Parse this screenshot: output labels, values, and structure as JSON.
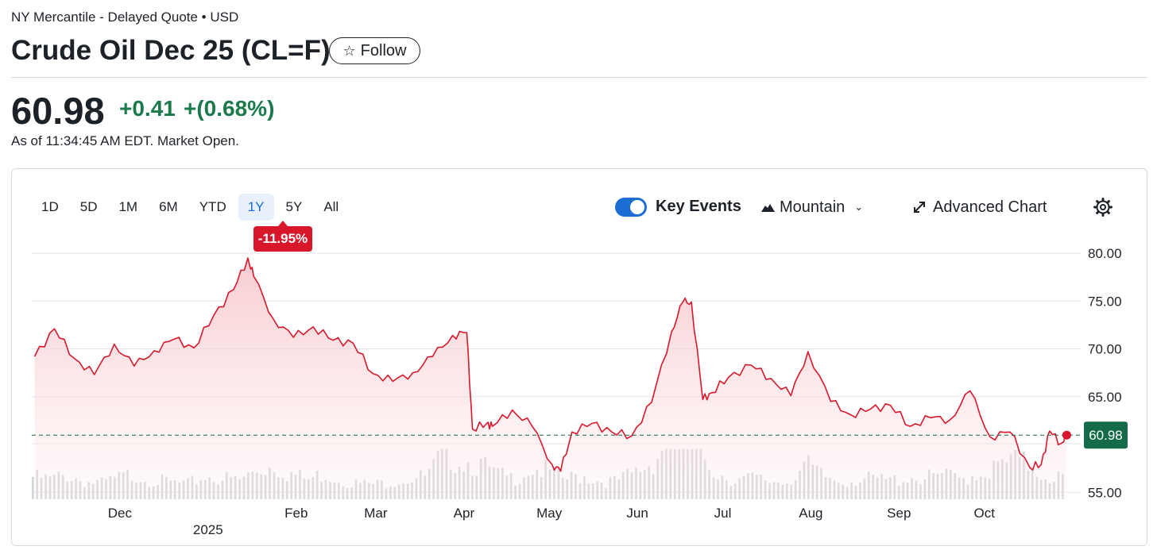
{
  "header": {
    "exchange": "NY Mercantile - Delayed Quote • USD",
    "title": "Crude Oil Dec 25 (CL=F)",
    "follow_label": "Follow"
  },
  "quote": {
    "price": "60.98",
    "change": "+0.41",
    "change_pct": "+(0.68%)",
    "as_of": "As of 11:34:45 AM EDT. Market Open."
  },
  "controls": {
    "ranges": [
      "1D",
      "5D",
      "1M",
      "6M",
      "YTD",
      "1Y",
      "5Y",
      "All"
    ],
    "active_range": "1Y",
    "key_events_label": "Key Events",
    "key_events_on": true,
    "chart_type_label": "Mountain",
    "advanced_label": "Advanced Chart",
    "period_change_badge": "-11.95%"
  },
  "colors": {
    "line": "#d9172b",
    "fill_top": "#f7c9cd",
    "positive": "#1a7a4c",
    "price_tag_bg": "#136b4a",
    "accent": "#1c6ed5",
    "volume": "#d2d5d9"
  },
  "chart_data": {
    "type": "area",
    "series": [
      {
        "x": [
          "2024-11-01",
          "2024-11-08",
          "2024-11-15",
          "2024-11-22",
          "2024-11-29",
          "2024-12-06",
          "2024-12-13",
          "2024-12-20",
          "2024-12-27",
          "2025-01-03",
          "2025-01-10",
          "2025-01-15",
          "2025-01-17",
          "2025-01-24",
          "2025-01-31",
          "2025-02-07",
          "2025-02-14",
          "2025-02-21",
          "2025-02-28",
          "2025-03-07",
          "2025-03-14",
          "2025-03-21",
          "2025-03-28",
          "2025-04-02",
          "2025-04-04",
          "2025-04-09",
          "2025-04-11",
          "2025-04-18",
          "2025-04-25",
          "2025-05-02",
          "2025-05-05",
          "2025-05-09",
          "2025-05-16",
          "2025-05-23",
          "2025-05-30",
          "2025-06-06",
          "2025-06-13",
          "2025-06-17",
          "2025-06-20",
          "2025-06-24",
          "2025-06-27",
          "2025-07-03",
          "2025-07-11",
          "2025-07-18",
          "2025-07-25",
          "2025-07-31",
          "2025-08-08",
          "2025-08-15",
          "2025-08-22",
          "2025-08-29",
          "2025-09-05",
          "2025-09-12",
          "2025-09-19",
          "2025-09-26",
          "2025-10-03",
          "2025-10-10",
          "2025-10-17",
          "2025-10-21",
          "2025-10-24",
          "2025-10-28",
          "2025-10-30"
        ],
        "values": [
          69.2,
          72.1,
          69.0,
          67.3,
          70.5,
          68.2,
          69.8,
          71.0,
          70.1,
          73.5,
          76.2,
          79.5,
          77.6,
          73.1,
          71.2,
          72.3,
          70.9,
          70.6,
          67.4,
          66.6,
          67.5,
          69.2,
          71.4,
          71.7,
          61.6,
          62.2,
          61.9,
          63.6,
          61.9,
          57.9,
          57.2,
          61.3,
          62.2,
          61.3,
          60.9,
          64.4,
          71.8,
          74.9,
          74.9,
          64.7,
          65.4,
          67.0,
          68.3,
          66.9,
          65.1,
          69.7,
          64.5,
          63.1,
          63.7,
          64.1,
          61.9,
          62.8,
          62.6,
          65.6,
          60.8,
          61.3,
          57.6,
          57.9,
          61.4,
          60.1,
          60.98
        ]
      }
    ],
    "x_ticks": [
      "Dec",
      "Feb",
      "Mar",
      "Apr",
      "May",
      "Jun",
      "Jul",
      "Aug",
      "Sep",
      "Oct"
    ],
    "x_sublabel": "2025",
    "y_ticks": [
      "80.00",
      "75.00",
      "70.00",
      "65.00",
      "55.00"
    ],
    "ylim": [
      55,
      80
    ],
    "current_value": 60.98,
    "current_label": "60.98",
    "volume": [
      0.41,
      0.36,
      0.44,
      0.33,
      0.29,
      0.38,
      0.46,
      0.35,
      0.31,
      0.27,
      0.42,
      0.39,
      0.34,
      0.52,
      0.63,
      0.47,
      0.35,
      0.48,
      0.36,
      0.28,
      0.27,
      0.34,
      0.39,
      0.41,
      0.86,
      0.73,
      0.64,
      0.45,
      0.37,
      0.58,
      0.51,
      0.36,
      0.44,
      0.34,
      0.32,
      0.47,
      0.66,
      1.1,
      1.05,
      0.79,
      0.47,
      0.35,
      0.38,
      0.33,
      0.34,
      0.62,
      0.42,
      0.33,
      0.37,
      0.36,
      0.34,
      0.41,
      0.38,
      0.44,
      0.36,
      0.47,
      0.55,
      0.69,
      0.64,
      0.43,
      0.4
    ],
    "grid": true
  }
}
